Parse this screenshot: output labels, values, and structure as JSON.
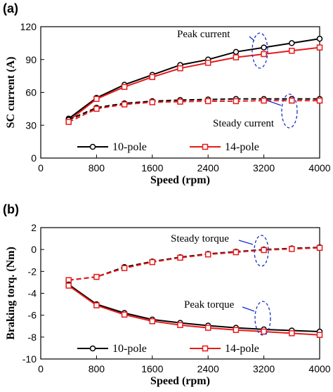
{
  "chart_data": [
    {
      "type": "line",
      "panel_label": "(a)",
      "xlabel": "Speed (rpm)",
      "ylabel": "SC current (A)",
      "xlim": [
        0,
        4000
      ],
      "ylim": [
        0,
        120
      ],
      "xticks": [
        "0",
        "800",
        "1600",
        "2400",
        "3200",
        "4000"
      ],
      "yticks": [
        "0",
        "30",
        "60",
        "90",
        "120"
      ],
      "x": [
        400,
        800,
        1200,
        1600,
        2000,
        2400,
        2800,
        3200,
        3600,
        4000
      ],
      "series": [
        {
          "name": "10-pole",
          "group": "peak",
          "values": [
            36,
            55,
            67,
            76,
            85,
            90,
            97,
            101,
            105,
            109
          ]
        },
        {
          "name": "14-pole",
          "group": "peak",
          "values": [
            34,
            54,
            65,
            74,
            82,
            87,
            92,
            95,
            98,
            101
          ]
        },
        {
          "name": "10-pole",
          "group": "steady",
          "values": [
            35,
            46,
            50,
            52,
            53,
            53.5,
            54,
            54,
            54,
            54
          ]
        },
        {
          "name": "14-pole",
          "group": "steady",
          "values": [
            33,
            45,
            49,
            51,
            51.5,
            52,
            52,
            52.5,
            52.5,
            52.5
          ]
        }
      ],
      "annotations": [
        "Peak current",
        "Steady current"
      ],
      "legend": [
        "10-pole",
        "14-pole"
      ],
      "legend_position": "bottom"
    },
    {
      "type": "line",
      "panel_label": "(b)",
      "xlabel": "Speed (rpm)",
      "ylabel": "Braking torq. (Nm)",
      "xlim": [
        0,
        4000
      ],
      "ylim": [
        -10,
        2
      ],
      "xticks": [
        "0",
        "800",
        "1600",
        "2400",
        "3200",
        "4000"
      ],
      "yticks": [
        "2",
        "0",
        "-2",
        "-4",
        "-6",
        "-8",
        "-10"
      ],
      "x": [
        400,
        800,
        1200,
        1600,
        2000,
        2400,
        2800,
        3200,
        3600,
        4000
      ],
      "series": [
        {
          "name": "10-pole",
          "group": "steady",
          "values": [
            -2.8,
            -2.5,
            -1.6,
            -1.1,
            -0.7,
            -0.4,
            -0.2,
            0.0,
            0.1,
            0.2
          ]
        },
        {
          "name": "14-pole",
          "group": "steady",
          "values": [
            -2.8,
            -2.5,
            -1.7,
            -1.15,
            -0.75,
            -0.45,
            -0.25,
            -0.05,
            0.05,
            0.15
          ]
        },
        {
          "name": "10-pole",
          "group": "peak",
          "values": [
            -3.2,
            -5.0,
            -5.8,
            -6.4,
            -6.7,
            -6.95,
            -7.15,
            -7.3,
            -7.4,
            -7.5
          ]
        },
        {
          "name": "14-pole",
          "group": "peak",
          "values": [
            -3.3,
            -5.1,
            -5.95,
            -6.55,
            -6.9,
            -7.15,
            -7.35,
            -7.5,
            -7.65,
            -7.8
          ]
        }
      ],
      "annotations": [
        "Steady torque",
        "Peak torque"
      ],
      "legend": [
        "10-pole",
        "14-pole"
      ],
      "legend_position": "bottom"
    }
  ],
  "colors": {
    "10-pole": "#000000",
    "14-pole": "#e8191a",
    "annotation": "#1a2ecc"
  }
}
